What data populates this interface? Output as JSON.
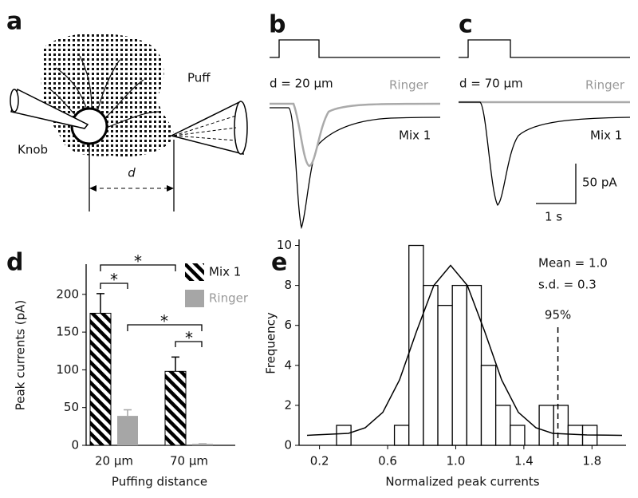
{
  "panels": {
    "a": {
      "label": "a",
      "knob": "Knob",
      "puff": "Puff",
      "distance": "d"
    },
    "b": {
      "label": "b",
      "distance": "d = 20 µm",
      "ringer": "Ringer",
      "mix": "Mix 1"
    },
    "c": {
      "label": "c",
      "distance": "d = 70 µm",
      "ringer": "Ringer",
      "mix": "Mix 1",
      "scale_current": "50 pA",
      "scale_time": "1 s"
    },
    "d": {
      "label": "d"
    },
    "e": {
      "label": "e"
    }
  },
  "chart_data": [
    {
      "type": "bar",
      "ylabel": "Peak currents (pA)",
      "xlabel": "Puffing distance",
      "categories": [
        "20 µm",
        "70 µm"
      ],
      "series": [
        {
          "name": "Mix 1",
          "color": "#000000",
          "hatch": "diagonal",
          "values": [
            175,
            98
          ],
          "errors": [
            26,
            19
          ]
        },
        {
          "name": "Ringer",
          "color": "#a6a6a6",
          "values": [
            39,
            2
          ],
          "errors": [
            8,
            0
          ]
        }
      ],
      "ylim": [
        0,
        240
      ],
      "yticks": [
        0,
        50,
        100,
        150,
        200
      ],
      "annotations": [
        "*",
        "*",
        "*",
        "*"
      ]
    },
    {
      "type": "histogram",
      "ylabel": "Frequency",
      "xlabel": "Normalized peak currents",
      "bins": [
        0.3,
        0.385,
        0.47,
        0.555,
        0.64,
        0.725,
        0.81,
        0.895,
        0.98,
        1.065,
        1.15,
        1.235,
        1.32,
        1.405,
        1.49,
        1.575,
        1.66,
        1.745,
        1.83
      ],
      "counts": [
        1,
        0,
        0,
        0,
        1,
        10,
        8,
        7,
        8,
        8,
        4,
        2,
        1,
        0,
        2,
        2,
        1,
        1
      ],
      "fill": "#ffffff",
      "edgecolor": "#000000",
      "xlim": [
        0.08,
        2.0
      ],
      "xticks": [
        0.2,
        0.6,
        {
          "value": 1,
          "label": "1.0"
        },
        1.4,
        1.8
      ],
      "ylim": [
        0,
        10.3
      ],
      "yticks": [
        0,
        2,
        4,
        6,
        8,
        10
      ],
      "annotations": [
        "Mean = 1.0",
        "s.d. = 0.3"
      ],
      "reference_line": {
        "value": 1.6,
        "label": "95%"
      }
    }
  ]
}
